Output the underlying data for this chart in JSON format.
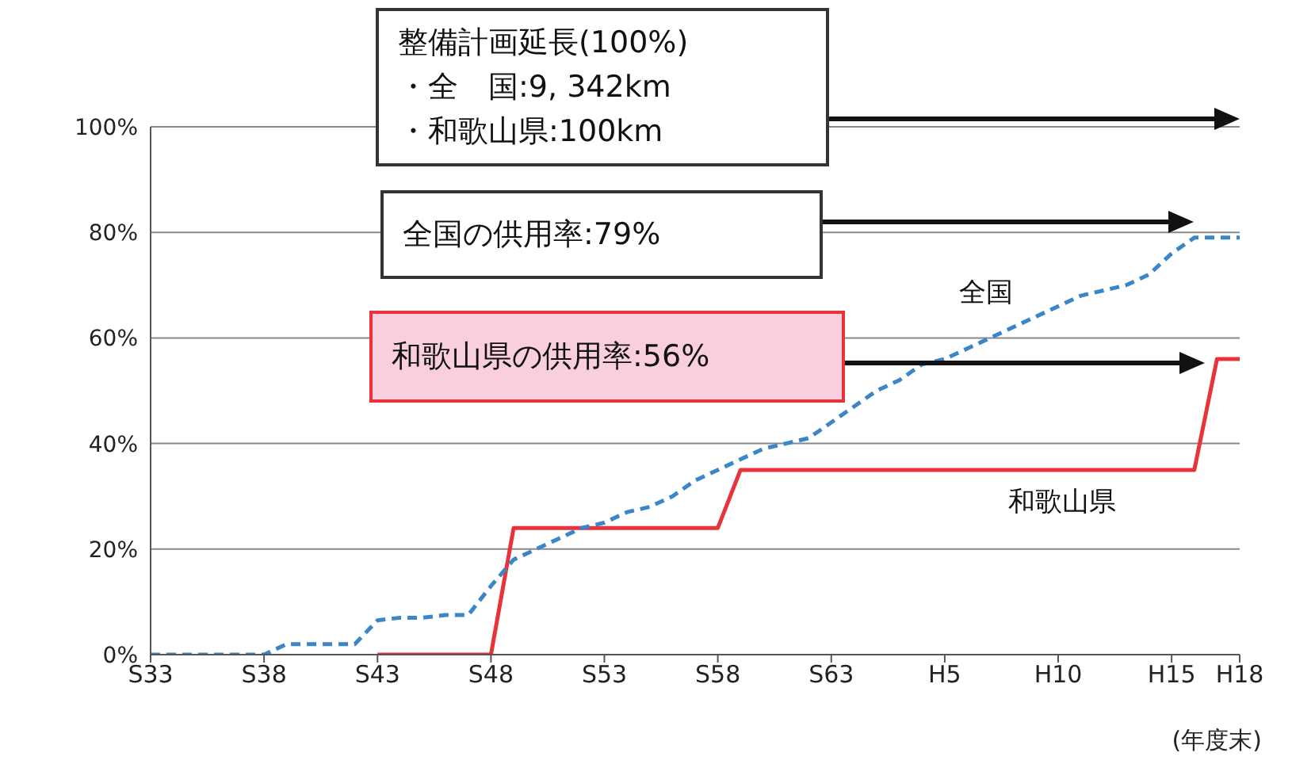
{
  "chart_data": {
    "type": "line",
    "xlabel": "(年度末)",
    "categories": [
      "S33",
      null,
      null,
      null,
      null,
      "S38",
      null,
      null,
      null,
      null,
      "S43",
      null,
      null,
      null,
      null,
      "S48",
      null,
      null,
      null,
      null,
      "S53",
      null,
      null,
      null,
      null,
      "S58",
      null,
      null,
      null,
      null,
      "S63",
      null,
      null,
      null,
      null,
      "H5",
      null,
      null,
      null,
      null,
      "H10",
      null,
      null,
      null,
      null,
      "H15",
      null,
      null,
      "H18"
    ],
    "ylim": [
      0,
      100
    ],
    "yticks": [
      {
        "value": 0,
        "label": "0%"
      },
      {
        "value": 20,
        "label": "20%"
      },
      {
        "value": 40,
        "label": "40%"
      },
      {
        "value": 60,
        "label": "60%"
      },
      {
        "value": 80,
        "label": "80%"
      },
      {
        "value": 100,
        "label": "100%"
      }
    ],
    "grid": "y",
    "marker": "none",
    "series": [
      {
        "name": "全国",
        "color": "#3a86c8",
        "line_style": "dashed",
        "values": [
          0,
          0,
          0,
          0,
          0,
          0,
          2,
          2,
          2,
          2,
          6.5,
          7,
          7,
          7.5,
          7.5,
          13,
          18,
          20,
          22,
          24,
          25,
          27,
          28,
          30,
          33,
          35,
          37,
          39,
          40,
          41,
          44,
          47,
          50,
          52,
          55,
          56,
          58,
          60,
          62,
          64,
          66,
          68,
          69,
          70,
          72,
          76,
          79,
          79,
          79
        ]
      },
      {
        "name": "和歌山県",
        "color": "#e8333a",
        "line_style": "solid",
        "values": [
          null,
          null,
          null,
          null,
          null,
          null,
          null,
          null,
          null,
          null,
          0,
          0,
          0,
          0,
          0,
          0,
          24,
          24,
          24,
          24,
          24,
          24,
          24,
          24,
          24,
          24,
          35,
          35,
          35,
          35,
          35,
          35,
          35,
          35,
          35,
          35,
          35,
          35,
          35,
          35,
          35,
          35,
          35,
          35,
          35,
          35,
          35,
          56,
          56
        ]
      }
    ],
    "annotations": [
      "整備計画延長(100%)\n・全　国:9, 342km\n・和歌山県:100km",
      "全国の供用率:79%",
      "和歌山県の供用率:56%"
    ]
  }
}
